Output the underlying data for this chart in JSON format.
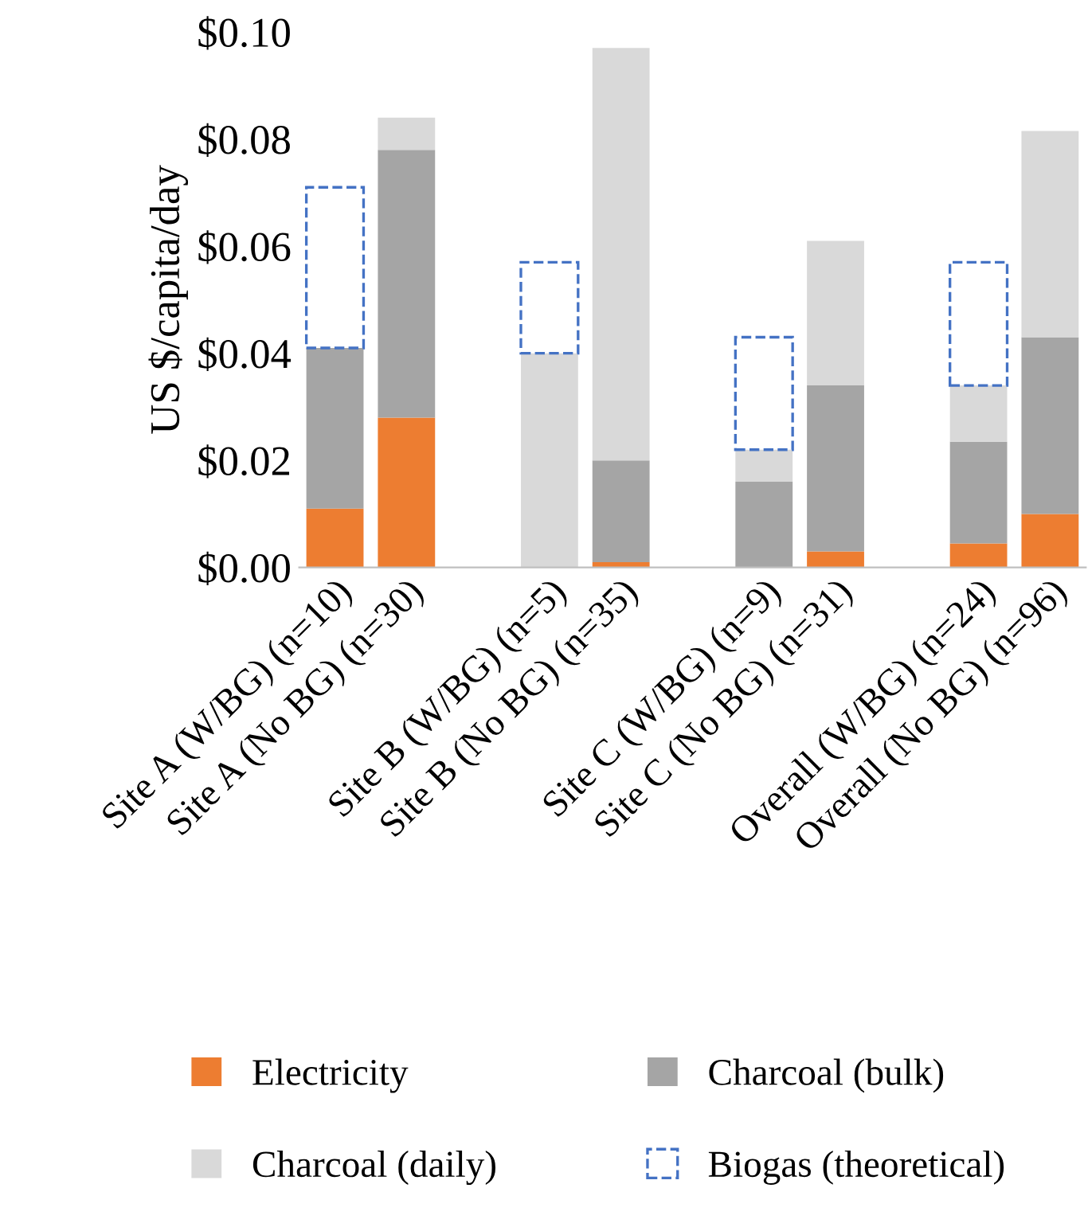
{
  "chart_data": {
    "type": "bar",
    "stacked": true,
    "ylabel": "US $/capita/day",
    "categories": [
      "Site A (W/BG) (n=10)",
      "Site A (No BG) (n=30)",
      null,
      "Site B (W/BG) (n=5)",
      "Site B (No BG) (n=35)",
      null,
      "Site C (W/BG) (n=9)",
      "Site C (No BG) (n=31)",
      null,
      "Overall (W/BG) (n=24)",
      "Overall (No BG) (n=96)"
    ],
    "series": [
      {
        "name": "Electricity",
        "color": "#ed7d31",
        "values": [
          0.011,
          0.028,
          null,
          0,
          0.001,
          null,
          0,
          0.003,
          null,
          0.0045,
          0.01
        ]
      },
      {
        "name": "Charcoal (bulk)",
        "color": "#a5a5a5",
        "values": [
          0.03,
          0.05,
          null,
          0,
          0.019,
          null,
          0.016,
          0.031,
          null,
          0.019,
          0.033
        ]
      },
      {
        "name": "Charcoal (daily)",
        "color": "#d9d9d9",
        "values": [
          0,
          0.006,
          null,
          0.04,
          0.077,
          null,
          0.006,
          0.027,
          null,
          0.0105,
          0.0385
        ]
      },
      {
        "name": "Biogas (theoretical)",
        "color": "#4472c4",
        "line_style": "dashed",
        "values": [
          0.03,
          null,
          null,
          0.017,
          null,
          null,
          0.021,
          null,
          null,
          0.023,
          null
        ]
      }
    ],
    "ylim": [
      0,
      0.1
    ],
    "yticks": [
      {
        "value": 0,
        "label": "$0.00"
      },
      {
        "value": 0.02,
        "label": "$0.02"
      },
      {
        "value": 0.04,
        "label": "$0.04"
      },
      {
        "value": 0.06,
        "label": "$0.06"
      },
      {
        "value": 0.08,
        "label": "$0.08"
      },
      {
        "value": 0.1,
        "label": "$0.10"
      }
    ],
    "grid": false,
    "legend": "bottom"
  }
}
